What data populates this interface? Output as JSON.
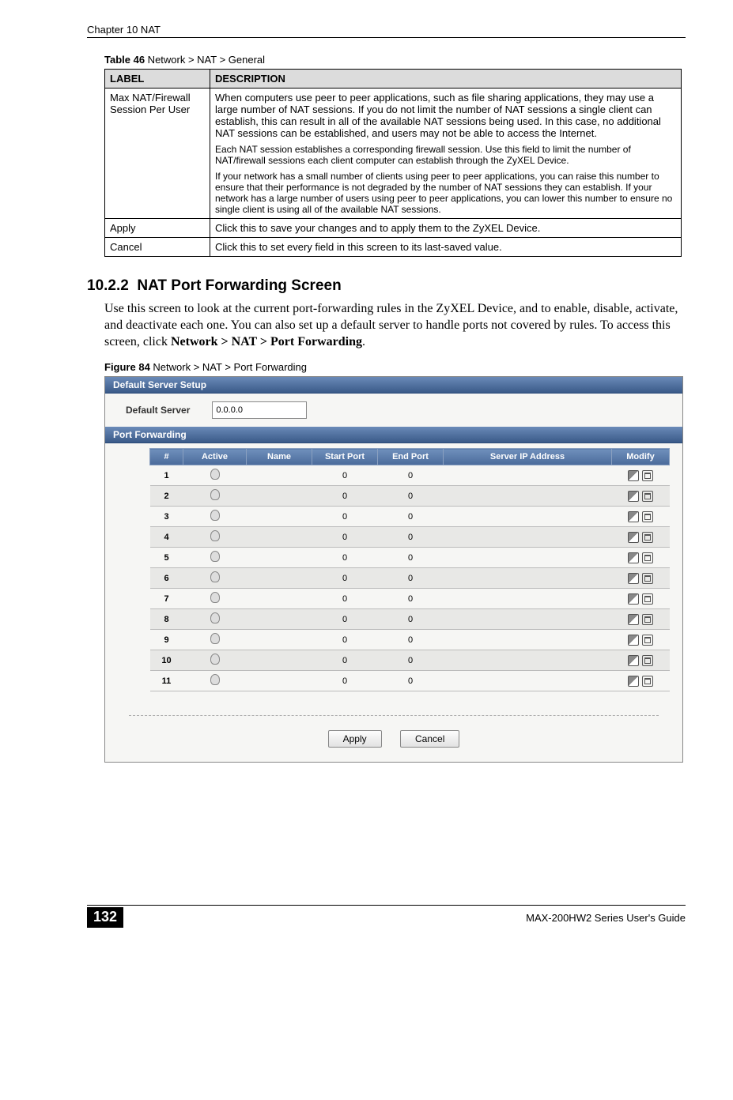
{
  "header": {
    "chapter": "Chapter 10 NAT"
  },
  "table46": {
    "caption_bold": "Table 46",
    "caption_rest": "   Network > NAT > General",
    "col1": "LABEL",
    "col2": "DESCRIPTION",
    "rows": [
      {
        "label": "Max NAT/Firewall Session Per User",
        "p1": "When computers use peer to peer applications, such as file sharing applications, they may use a large number of NAT sessions. If you do not limit the number of NAT sessions a single client can establish, this can result in all of the available NAT sessions being used. In this case, no additional NAT sessions can be established, and users may not be able to access the Internet.",
        "p2": "Each NAT session establishes a corresponding firewall session. Use this field to limit the number of NAT/firewall sessions each client computer can establish through the ZyXEL Device.",
        "p3": "If your network has a small number of clients using peer to peer applications, you can raise this number to ensure that their performance is not degraded by the number of NAT sessions they can establish. If your network has a large number of users using peer to peer applications, you can lower this number to ensure no single client is using all of the available NAT sessions."
      },
      {
        "label": "Apply",
        "p1": "Click this to save your changes and to apply them to the ZyXEL Device."
      },
      {
        "label": "Cancel",
        "p1": "Click this to set every field in this screen to its last-saved value."
      }
    ]
  },
  "section": {
    "number": "10.2.2",
    "title": "NAT Port Forwarding Screen",
    "body_pre": "Use this screen to look at the current port-forwarding rules in the ZyXEL Device, and to enable, disable, activate, and deactivate each one. You can also set up a default server to handle ports not covered by rules. To access this screen, click ",
    "body_bold": "Network > NAT > Port Forwarding",
    "body_post": "."
  },
  "figure": {
    "caption_bold": "Figure 84",
    "caption_rest": "   Network > NAT > Port Forwarding",
    "bar1": "Default Server Setup",
    "default_label": "Default Server",
    "default_value": "0.0.0.0",
    "bar2": "Port Forwarding",
    "headers": {
      "num": "#",
      "active": "Active",
      "name": "Name",
      "start": "Start Port",
      "end": "End Port",
      "server": "Server IP Address",
      "modify": "Modify"
    },
    "rows": [
      {
        "n": "1",
        "sp": "0",
        "ep": "0",
        "alt": false
      },
      {
        "n": "2",
        "sp": "0",
        "ep": "0",
        "alt": true
      },
      {
        "n": "3",
        "sp": "0",
        "ep": "0",
        "alt": false
      },
      {
        "n": "4",
        "sp": "0",
        "ep": "0",
        "alt": true
      },
      {
        "n": "5",
        "sp": "0",
        "ep": "0",
        "alt": false
      },
      {
        "n": "6",
        "sp": "0",
        "ep": "0",
        "alt": true
      },
      {
        "n": "7",
        "sp": "0",
        "ep": "0",
        "alt": false
      },
      {
        "n": "8",
        "sp": "0",
        "ep": "0",
        "alt": true
      },
      {
        "n": "9",
        "sp": "0",
        "ep": "0",
        "alt": false
      },
      {
        "n": "10",
        "sp": "0",
        "ep": "0",
        "alt": true
      },
      {
        "n": "11",
        "sp": "0",
        "ep": "0",
        "alt": false
      }
    ],
    "apply": "Apply",
    "cancel": "Cancel"
  },
  "footer": {
    "page": "132",
    "guide": "MAX-200HW2 Series User's Guide"
  }
}
